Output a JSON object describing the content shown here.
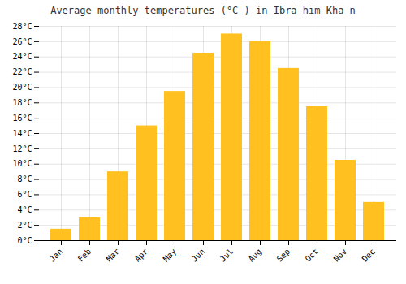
{
  "chart_data": {
    "type": "bar",
    "title": "Average monthly temperatures (°C ) in Ibrā hīm Khā n",
    "categories": [
      "Jan",
      "Feb",
      "Mar",
      "Apr",
      "May",
      "Jun",
      "Jul",
      "Aug",
      "Sep",
      "Oct",
      "Nov",
      "Dec"
    ],
    "values": [
      1.5,
      3.0,
      9.0,
      15.0,
      19.5,
      24.5,
      27.0,
      26.0,
      22.5,
      17.5,
      10.5,
      5.0
    ],
    "color": "#FFC020",
    "ylim": [
      0,
      28
    ],
    "yticks": [
      {
        "value": 0,
        "label": "0°C"
      },
      {
        "value": 2,
        "label": "2°C"
      },
      {
        "value": 4,
        "label": "4°C"
      },
      {
        "value": 6,
        "label": "6°C"
      },
      {
        "value": 8,
        "label": "8°C"
      },
      {
        "value": 10,
        "label": "10°C"
      },
      {
        "value": 12,
        "label": "12°C"
      },
      {
        "value": 14,
        "label": "14°C"
      },
      {
        "value": 16,
        "label": "16°C"
      },
      {
        "value": 18,
        "label": "18°C"
      },
      {
        "value": 20,
        "label": "20°C"
      },
      {
        "value": 22,
        "label": "22°C"
      },
      {
        "value": 24,
        "label": "24°C"
      },
      {
        "value": 26,
        "label": "26°C"
      },
      {
        "value": 28,
        "label": "28°C"
      }
    ],
    "grid": true
  }
}
